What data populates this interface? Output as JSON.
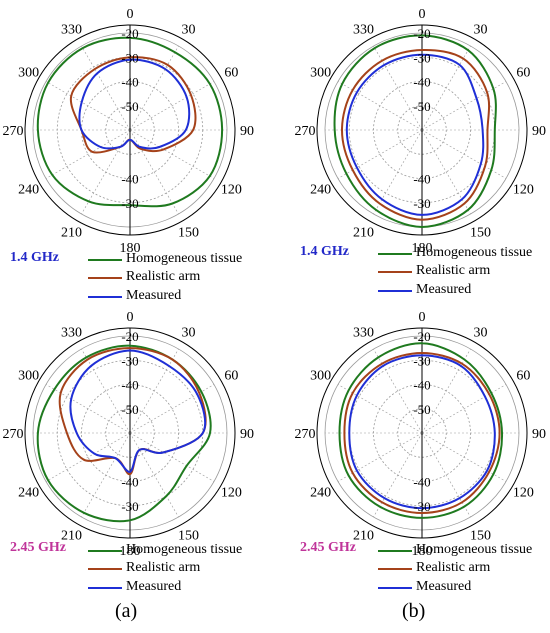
{
  "colors": {
    "homogeneous": "#1f7a1f",
    "realistic": "#a5421a",
    "measured": "#1f2fd6",
    "freq_low": "#2228c8",
    "freq_high": "#c0359a",
    "grid": "#9a9a9a",
    "axis": "#000000"
  },
  "captions": {
    "a": "(a)",
    "b": "(b)"
  },
  "chart_data": [
    {
      "id": "a-1.4",
      "type": "polar",
      "frequency_label": "1.4 GHz",
      "r_ticks": [
        "-20",
        "-30",
        "-40",
        "-50"
      ],
      "r_range": [
        -60,
        -20
      ],
      "angle_ticks": [
        "0",
        "30",
        "60",
        "90",
        "120",
        "150",
        "180",
        "210",
        "240",
        "270",
        "300",
        "330"
      ],
      "lower_r_labels": [
        "-30",
        "-40"
      ],
      "legend": [
        "Homogeneous tissue",
        "Realistic arm",
        "Measured"
      ],
      "angles": [
        0,
        30,
        60,
        90,
        120,
        150,
        180,
        210,
        240,
        270,
        300,
        330
      ],
      "series": [
        {
          "name": "Homogeneous tissue",
          "values": [
            -22,
            -23,
            -22,
            -22,
            -22,
            -25,
            -29,
            -26,
            -23,
            -22,
            -21,
            -21
          ]
        },
        {
          "name": "Realistic arm",
          "values": [
            -30,
            -29,
            -31,
            -34,
            -44,
            -51,
            -56,
            -52,
            -42,
            -40,
            -32,
            -31
          ]
        },
        {
          "name": "Measured",
          "values": [
            -31,
            -31,
            -33,
            -37,
            -46,
            -52,
            -56,
            -52,
            -46,
            -40,
            -37,
            -33
          ]
        }
      ]
    },
    {
      "id": "b-1.4",
      "type": "polar",
      "frequency_label": "1.4 GHz",
      "r_ticks": [
        "-20",
        "-30",
        "-40",
        "-50"
      ],
      "r_range": [
        -60,
        -20
      ],
      "angle_ticks": [
        "0",
        "30",
        "60",
        "90",
        "120",
        "150",
        "180",
        "210",
        "240",
        "270",
        "300",
        "330"
      ],
      "lower_r_labels": [
        "-30",
        "-40"
      ],
      "legend": [
        "Homogeneous tissue",
        "Realistic arm",
        "Measured"
      ],
      "angles": [
        0,
        30,
        60,
        90,
        120,
        150,
        180,
        210,
        240,
        270,
        300,
        330
      ],
      "series": [
        {
          "name": "Homogeneous tissue",
          "values": [
            -21,
            -22,
            -26,
            -30,
            -27,
            -22,
            -20,
            -22,
            -24,
            -24,
            -22,
            -21
          ]
        },
        {
          "name": "Realistic arm",
          "values": [
            -27,
            -26,
            -29,
            -33,
            -30,
            -25,
            -23,
            -25,
            -27,
            -27,
            -27,
            -27
          ]
        },
        {
          "name": "Measured",
          "values": [
            -29,
            -29,
            -34,
            -35,
            -32,
            -27,
            -25,
            -27,
            -29,
            -29,
            -29,
            -29
          ]
        }
      ]
    },
    {
      "id": "a-2.45",
      "type": "polar",
      "frequency_label": "2.45 GHz",
      "r_ticks": [
        "-20",
        "-30",
        "-40",
        "-50"
      ],
      "r_range": [
        -60,
        -20
      ],
      "angle_ticks": [
        "0",
        "30",
        "60",
        "90",
        "120",
        "150",
        "180",
        "210",
        "240",
        "270",
        "300",
        "330"
      ],
      "lower_r_labels": [
        "-30",
        "-40"
      ],
      "legend": [
        "Homogeneous tissue",
        "Realistic arm",
        "Measured"
      ],
      "angles": [
        0,
        30,
        60,
        90,
        120,
        150,
        180,
        210,
        240,
        270,
        300,
        330
      ],
      "series": [
        {
          "name": "Homogeneous tissue",
          "values": [
            -24,
            -25,
            -26,
            -27,
            -33,
            -30,
            -24,
            -22,
            -21,
            -22,
            -24,
            -24
          ]
        },
        {
          "name": "Realistic arm",
          "values": [
            -25,
            -25,
            -27,
            -30,
            -44,
            -52,
            -43,
            -48,
            -38,
            -34,
            -27,
            -25
          ]
        },
        {
          "name": "Measured",
          "values": [
            -26,
            -28,
            -28,
            -30,
            -44,
            -52,
            -44,
            -48,
            -43,
            -38,
            -32,
            -28
          ]
        }
      ]
    },
    {
      "id": "b-2.45",
      "type": "polar",
      "frequency_label": "2.45 GHz",
      "r_ticks": [
        "-20",
        "-30",
        "-40",
        "-50"
      ],
      "r_range": [
        -60,
        -20
      ],
      "angle_ticks": [
        "0",
        "30",
        "60",
        "90",
        "120",
        "150",
        "180",
        "210",
        "240",
        "270",
        "300",
        "330"
      ],
      "lower_r_labels": [
        "-30",
        "-40"
      ],
      "legend": [
        "Homogeneous tissue",
        "Realistic arm",
        "Measured"
      ],
      "angles": [
        0,
        30,
        60,
        90,
        120,
        150,
        180,
        210,
        240,
        270,
        300,
        330
      ],
      "series": [
        {
          "name": "Homogeneous tissue",
          "values": [
            -23,
            -25,
            -27,
            -27,
            -26,
            -25,
            -25,
            -25,
            -25,
            -26,
            -25,
            -24
          ]
        },
        {
          "name": "Realistic arm",
          "values": [
            -27,
            -27,
            -28,
            -28,
            -28,
            -27,
            -27,
            -27,
            -27,
            -28,
            -27,
            -27
          ]
        },
        {
          "name": "Measured",
          "values": [
            -28,
            -28,
            -30,
            -30,
            -29,
            -29,
            -29,
            -29,
            -29,
            -30,
            -29,
            -28
          ]
        }
      ]
    }
  ]
}
